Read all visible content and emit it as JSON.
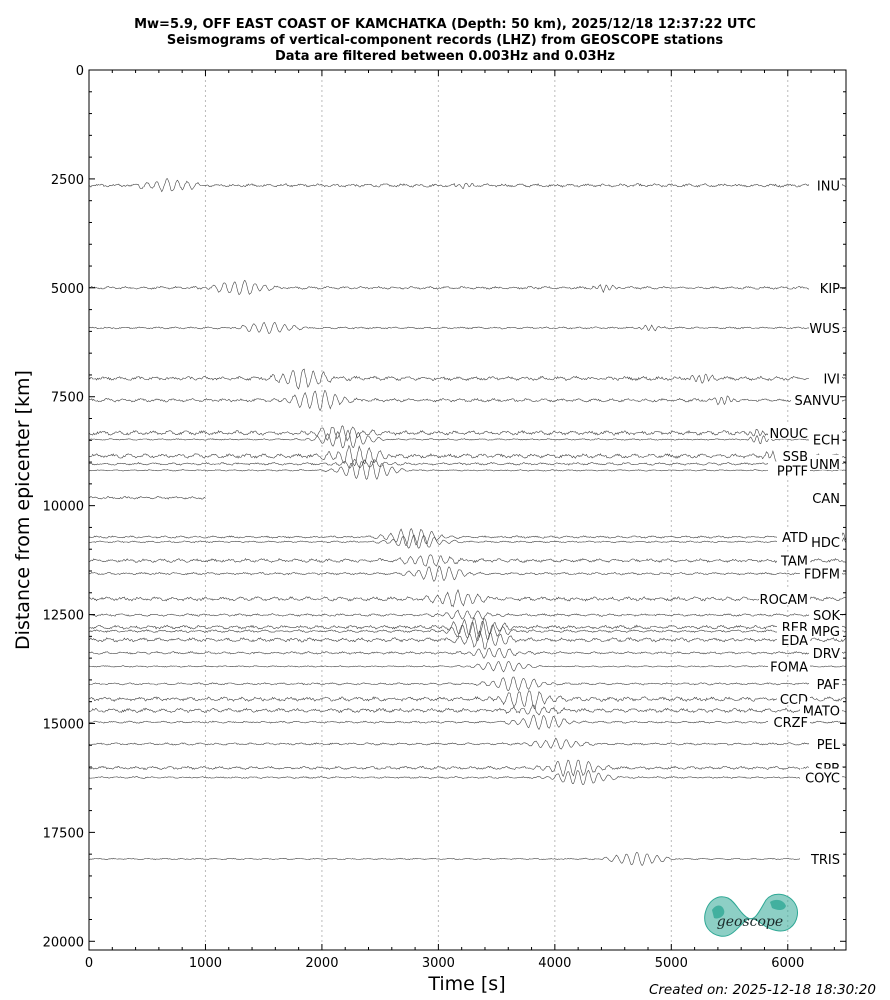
{
  "title": {
    "line1": "Mw=5.9, OFF EAST COAST OF KAMCHATKA (Depth: 50 km), 2025/12/18 12:37:22 UTC",
    "line2": "Seismograms of vertical-component records (LHZ) from GEOSCOPE stations",
    "line3": "Data are filtered between 0.003Hz and 0.03Hz"
  },
  "footer": "Created on: 2025-12-18 18:30:20",
  "logo": {
    "text": "geoscope",
    "color": "#2fa895"
  },
  "chart_data": {
    "type": "line",
    "xlabel": "Time [s]",
    "ylabel": "Distance from epicenter [km]",
    "xlim": [
      0,
      6500
    ],
    "ylim": [
      20200,
      0
    ],
    "y_inverted": true,
    "xticks": [
      0,
      1000,
      2000,
      3000,
      4000,
      5000,
      6000
    ],
    "yticks": [
      0,
      2500,
      5000,
      7500,
      10000,
      12500,
      15000,
      17500,
      20000
    ],
    "grid": "x-dotted",
    "trace_color": "#444444",
    "stations": [
      {
        "name": "INU",
        "distance": 2650
      },
      {
        "name": "KIP",
        "distance": 5000
      },
      {
        "name": "WUS",
        "distance": 5920
      },
      {
        "name": "IVI",
        "distance": 7080
      },
      {
        "name": "SANVU",
        "distance": 7580
      },
      {
        "name": "NOUC",
        "distance": 8330
      },
      {
        "name": "ECH",
        "distance": 8480
      },
      {
        "name": "SSB",
        "distance": 8860
      },
      {
        "name": "UNM",
        "distance": 9040
      },
      {
        "name": "PPTF",
        "distance": 9190
      },
      {
        "name": "CAN",
        "distance": 9820
      },
      {
        "name": "ATD",
        "distance": 10720
      },
      {
        "name": "HDC",
        "distance": 10830
      },
      {
        "name": "TAM",
        "distance": 11260
      },
      {
        "name": "FDFM",
        "distance": 11560
      },
      {
        "name": "ROCAM",
        "distance": 12140
      },
      {
        "name": "SOK",
        "distance": 12510
      },
      {
        "name": "RER",
        "distance": 12790
      },
      {
        "name": "MPG",
        "distance": 12880
      },
      {
        "name": "EDA",
        "distance": 13080
      },
      {
        "name": "DRV",
        "distance": 13380
      },
      {
        "name": "FOMA",
        "distance": 13690
      },
      {
        "name": "PAF",
        "distance": 14090
      },
      {
        "name": "CCD",
        "distance": 14440
      },
      {
        "name": "MATO",
        "distance": 14700
      },
      {
        "name": "CRZF",
        "distance": 14970
      },
      {
        "name": "PEL",
        "distance": 15470
      },
      {
        "name": "SPB",
        "distance": 16020
      },
      {
        "name": "COYC",
        "distance": 16240
      },
      {
        "name": "TRIS",
        "distance": 18110
      }
    ]
  }
}
